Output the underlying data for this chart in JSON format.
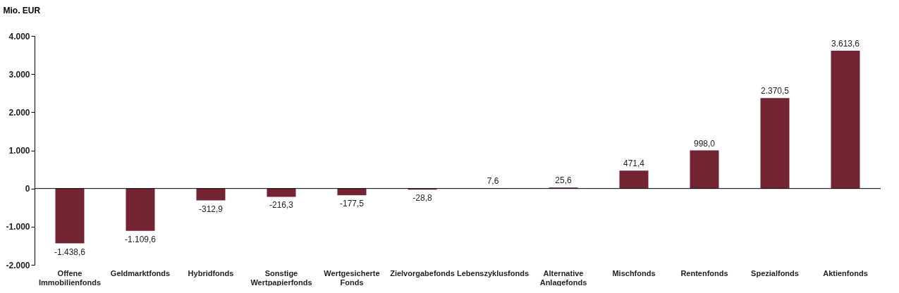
{
  "chart_data": {
    "type": "bar",
    "ylabel": "Mio. EUR",
    "categories": [
      "Offene Immobilienfonds",
      "Geldmarktfonds",
      "Hybridfonds",
      "Sonstige Wertpapierfonds",
      "Wertgesicherte Fonds",
      "Zielvorgabefonds",
      "Lebenszyklusfonds",
      "Alternative Anlagefonds",
      "Mischfonds",
      "Rentenfonds",
      "Spezialfonds",
      "Aktienfonds"
    ],
    "values": [
      -1438.6,
      -1109.6,
      -312.9,
      -216.3,
      -177.5,
      -28.8,
      7.6,
      25.6,
      471.4,
      998.0,
      2370.5,
      3613.6
    ],
    "value_labels": [
      "-1.438,6",
      "-1.109,6",
      "-312,9",
      "-216,3",
      "-177,5",
      "-28,8",
      "7,6",
      "25,6",
      "471,4",
      "998,0",
      "2.370,5",
      "3.613,6"
    ],
    "color": "#722433",
    "ylim": [
      -2000,
      4000
    ],
    "yticks": [
      {
        "value": -2000,
        "label": "-2.000"
      },
      {
        "value": -1000,
        "label": "-1.000"
      },
      0,
      {
        "value": 1000,
        "label": "1.000"
      },
      {
        "value": 2000,
        "label": "2.000"
      },
      {
        "value": 3000,
        "label": "3.000"
      },
      {
        "value": 4000,
        "label": "4.000"
      }
    ],
    "ref_lines": [
      {
        "axis": "y",
        "value": 0,
        "color": "#000000"
      }
    ],
    "grid": false
  }
}
